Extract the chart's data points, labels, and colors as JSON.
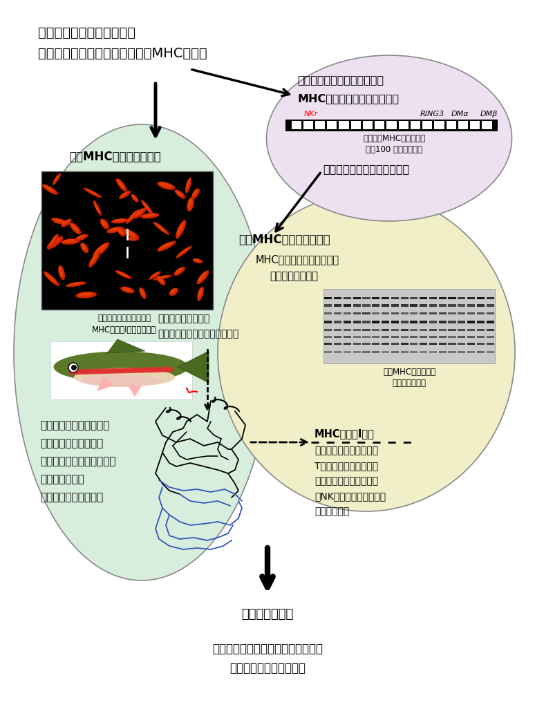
{
  "title_line1": "生体防御系において重要な",
  "title_line2": "主要組織適合性遺伝子複合体（MHC）領域",
  "top_right_bold1": "抗病性及び感受性系統動物の",
  "top_right_bold2": "MHC遺伝子領域比較（鳥類）",
  "gene_label_NKr": "NKr",
  "gene_label_RING3": "RING3",
  "gene_label_DMa": "DMα",
  "gene_label_DMb": "DMβ",
  "chicken_label1": "ニワトリMHC遺伝子領域",
  "chicken_label2": "（約100 キロベース）",
  "top_right_sub": "抗病性関連候補遺伝子の解明",
  "left_title": "魚類MHC遺伝子群の解明",
  "chrom_cap1": "ニジマス染色体における",
  "chrom_cap2": "MHCクラスⅠ遺伝子の位置",
  "left_text_lines": [
    "多数の対立遺伝子の解明",
    "白血球型分類法の確立",
    "拒絶反応、ワクチン有効性",
    "との関連の解明",
    "抗病性との関連の検討"
  ],
  "center_title": "新規MHC遺伝子群の解析",
  "center_sub1": "MHC遺伝子群の基礎的理解",
  "center_sub2": "ゲノム構造の解明",
  "gel_cap1": "魚類MHC遺伝子群の",
  "gel_cap2": "遺伝子連鎖解析",
  "antigen1": "抗原ペプチドの結合",
  "antigen2": "（ウイルス、細菌等から由来）",
  "mhc_line1": "MHCクラスⅠ分子",
  "mhc_line2": "（生体防御系において、",
  "mhc_line3": "Tリンパ球への抗原提示",
  "mhc_line4": "機能、ナチュラルキラー",
  "mhc_line5": "（NK）細胞との相互作用",
  "mhc_line6": "等を有する）",
  "bottom_title": "抗病性との関連",
  "bottom1": "産業動物における基礎的知見の応用",
  "bottom2": "抗病性動物の作出に寄与",
  "bg": "#ffffff",
  "green_ellipse": "#d8eedd",
  "pink_ellipse": "#ede0f0",
  "yellow_ellipse": "#f0efc8",
  "gray_border": "#888888"
}
